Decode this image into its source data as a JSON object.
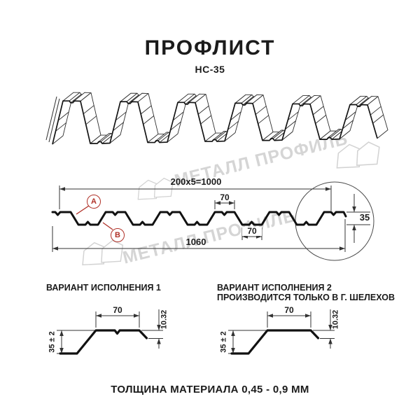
{
  "header": {
    "title": "ПРОФЛИСТ",
    "subtitle": "НС-35"
  },
  "watermark": {
    "text": "МЕТАЛЛ ПРОФИЛЬ"
  },
  "cross_section": {
    "dim_total_top": "200x5=1000",
    "dim_total_bottom": "1060",
    "dim_height": "35",
    "dim_rib_top": "70",
    "dim_rib_bottom": "70",
    "label_a": "A",
    "label_b": "B"
  },
  "variant1": {
    "title": "ВАРИАНТ ИСПОЛНЕНИЯ 1",
    "dim_width": "70",
    "dim_lip": "10.32",
    "dim_height": "35 ± 2"
  },
  "variant2": {
    "title": "ВАРИАНТ ИСПОЛНЕНИЯ 2",
    "subtitle": "ПРОИЗВОДИТСЯ ТОЛЬКО В Г. ШЕЛЕХОВ",
    "dim_width": "70",
    "dim_lip": "10.32",
    "dim_height": "35 ± 2"
  },
  "footer": {
    "text": "ТОЛЩИНА МАТЕРИАЛА 0,45 - 0,9 ММ"
  },
  "colors": {
    "accent_red": "#b03128",
    "line": "#1b1b1b",
    "watermark": "#d5d5d5"
  }
}
